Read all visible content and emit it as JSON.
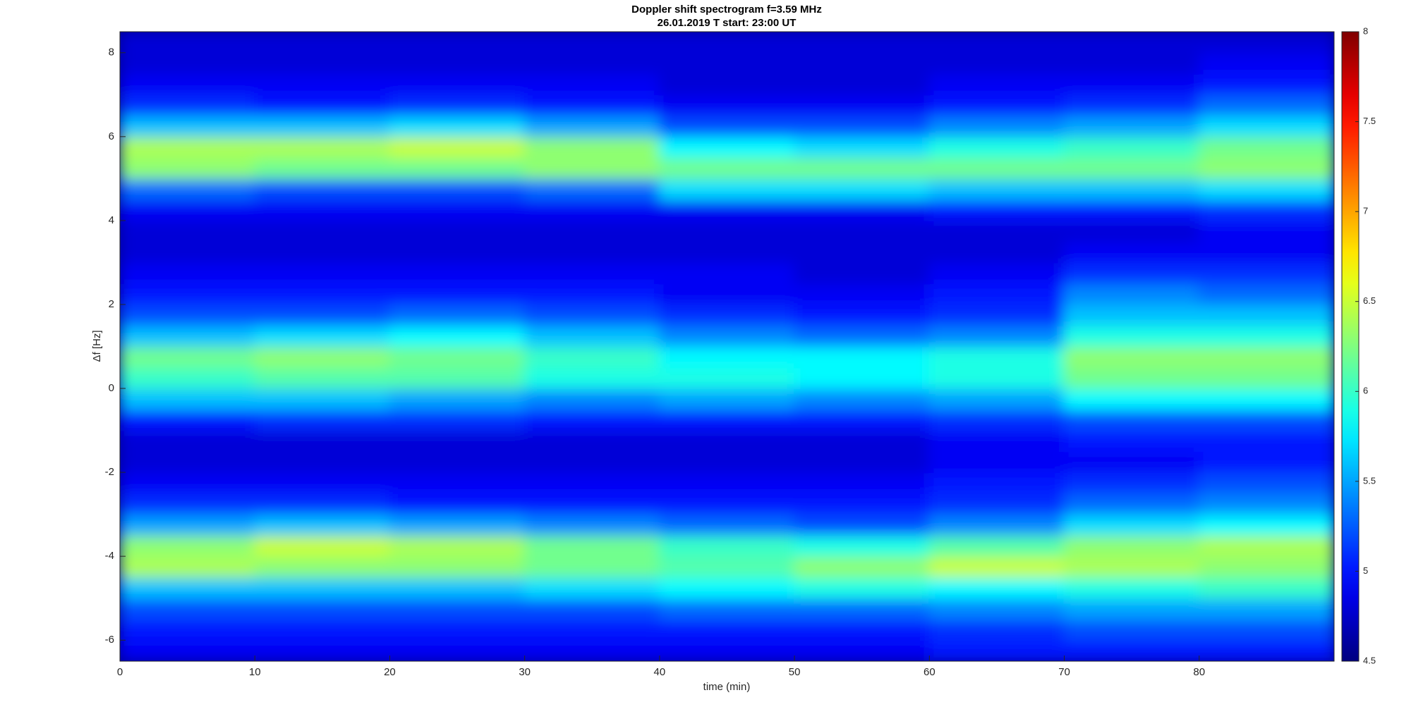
{
  "chart_data": {
    "type": "heatmap",
    "title": "Doppler shift spectrogram f=3.59 MHz",
    "subtitle": "26.01.2019   T start: 23:00 UT",
    "x_label": "time (min)",
    "y_label": "Δf [Hz]",
    "x": [
      0,
      10,
      20,
      30,
      40,
      50,
      60,
      70,
      80,
      90
    ],
    "y": [
      -6.5,
      -6,
      -5.5,
      -5,
      -4.5,
      -4,
      -3.5,
      -3,
      -2.5,
      -2,
      -1.5,
      -1,
      -0.5,
      0,
      0.5,
      1,
      1.5,
      2,
      2.5,
      3,
      3.5,
      4,
      4.5,
      5,
      5.5,
      6,
      6.5,
      7,
      7.5,
      8,
      8.5
    ],
    "z": [
      [
        4.9,
        4.9,
        4.9,
        4.9,
        4.9,
        4.9,
        5.0,
        5.0,
        5.0
      ],
      [
        5.0,
        5.0,
        5.0,
        5.0,
        5.0,
        5.0,
        5.1,
        5.2,
        5.2
      ],
      [
        5.2,
        5.2,
        5.2,
        5.2,
        5.3,
        5.3,
        5.4,
        5.5,
        5.5
      ],
      [
        5.6,
        5.6,
        5.6,
        5.7,
        5.8,
        5.9,
        5.8,
        5.9,
        6.0
      ],
      [
        6.4,
        6.3,
        6.3,
        6.2,
        6.1,
        6.3,
        6.5,
        6.4,
        6.3
      ],
      [
        6.3,
        6.5,
        6.4,
        6.2,
        6.0,
        5.9,
        6.1,
        6.3,
        6.4
      ],
      [
        5.5,
        5.6,
        5.5,
        5.4,
        5.3,
        5.2,
        5.4,
        5.7,
        5.8
      ],
      [
        5.1,
        5.1,
        5.0,
        5.0,
        5.0,
        5.0,
        5.1,
        5.3,
        5.4
      ],
      [
        4.9,
        4.9,
        4.9,
        4.9,
        4.9,
        4.9,
        5.0,
        5.1,
        5.2
      ],
      [
        4.8,
        4.8,
        4.8,
        4.8,
        4.8,
        4.8,
        4.9,
        4.9,
        5.0
      ],
      [
        4.8,
        4.8,
        4.8,
        4.8,
        4.8,
        4.8,
        4.9,
        5.0,
        5.0
      ],
      [
        5.0,
        5.1,
        5.1,
        5.0,
        5.0,
        5.0,
        5.1,
        5.2,
        5.2
      ],
      [
        5.6,
        5.6,
        5.5,
        5.4,
        5.5,
        5.4,
        5.5,
        5.8,
        5.8
      ],
      [
        6.0,
        6.1,
        6.1,
        5.9,
        5.9,
        5.8,
        5.9,
        6.2,
        6.2
      ],
      [
        6.2,
        6.3,
        6.2,
        6.0,
        5.8,
        5.8,
        5.9,
        6.3,
        6.3
      ],
      [
        5.6,
        5.7,
        5.8,
        5.6,
        5.4,
        5.3,
        5.4,
        5.9,
        5.9
      ],
      [
        5.2,
        5.2,
        5.3,
        5.2,
        5.1,
        5.0,
        5.1,
        5.6,
        5.6
      ],
      [
        5.0,
        5.0,
        5.0,
        5.0,
        4.9,
        4.9,
        5.0,
        5.4,
        5.3
      ],
      [
        4.9,
        4.9,
        4.9,
        4.9,
        4.9,
        4.8,
        4.9,
        5.1,
        5.1
      ],
      [
        4.8,
        4.8,
        4.8,
        4.8,
        4.8,
        4.8,
        4.8,
        4.9,
        4.9
      ],
      [
        4.8,
        4.8,
        4.8,
        4.8,
        4.8,
        4.8,
        4.8,
        4.8,
        4.9
      ],
      [
        4.9,
        4.9,
        4.9,
        4.9,
        4.9,
        4.9,
        5.0,
        5.0,
        5.1
      ],
      [
        5.3,
        5.2,
        5.2,
        5.3,
        5.7,
        5.7,
        5.6,
        5.6,
        5.7
      ],
      [
        6.3,
        6.2,
        6.2,
        6.3,
        6.2,
        6.2,
        6.2,
        6.2,
        6.3
      ],
      [
        6.4,
        6.4,
        6.5,
        6.3,
        5.8,
        5.7,
        5.9,
        6.0,
        6.2
      ],
      [
        5.6,
        5.6,
        5.7,
        5.5,
        5.2,
        5.2,
        5.4,
        5.5,
        5.7
      ],
      [
        5.1,
        5.0,
        5.1,
        5.0,
        4.9,
        4.9,
        5.0,
        5.1,
        5.3
      ],
      [
        4.9,
        4.9,
        4.9,
        4.9,
        4.8,
        4.8,
        4.9,
        4.9,
        5.0
      ],
      [
        4.8,
        4.8,
        4.8,
        4.8,
        4.8,
        4.8,
        4.8,
        4.8,
        4.9
      ],
      [
        4.8,
        4.8,
        4.8,
        4.8,
        4.8,
        4.8,
        4.8,
        4.8,
        4.8
      ]
    ],
    "colormap": "jet",
    "xlim": [
      0,
      90
    ],
    "ylim": [
      -6.5,
      8.5
    ],
    "xticks": [
      0,
      10,
      20,
      30,
      40,
      50,
      60,
      70,
      80
    ],
    "yticks": [
      -6,
      -4,
      -2,
      0,
      2,
      4,
      6,
      8
    ],
    "clim": [
      4.5,
      8
    ],
    "cticks": [
      4.5,
      5,
      5.5,
      6,
      6.5,
      7,
      7.5,
      8
    ]
  }
}
